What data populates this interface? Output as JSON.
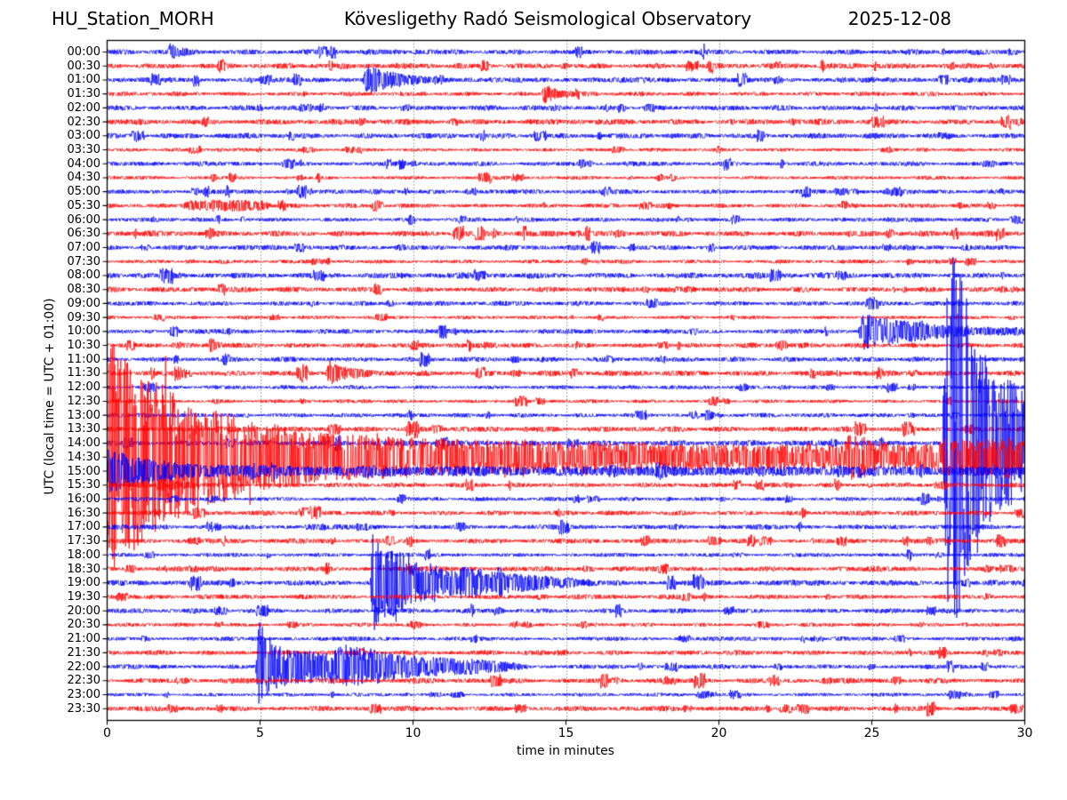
{
  "header": {
    "station": "HU_Station_MORH",
    "observatory": "Kövesligethy Radó Seismological Observatory",
    "date": "2025-12-08"
  },
  "chart_data": {
    "type": "line",
    "subtype": "helicorder-seismogram",
    "title_left": "HU_Station_MORH",
    "title_center": "Kövesligethy Radó Seismological Observatory",
    "title_right": "2025-12-08",
    "xlabel": "time in minutes",
    "ylabel": "UTC (local time = UTC + 01:00)",
    "xlim": [
      0,
      30
    ],
    "x_ticks": [
      0,
      5,
      10,
      15,
      20,
      25,
      30
    ],
    "grid": "vertical dotted lines every 5 minutes",
    "legend": "none",
    "n_rows": 48,
    "minutes_per_row": 30,
    "row_labels": [
      "00:00",
      "00:30",
      "01:00",
      "01:30",
      "02:00",
      "02:30",
      "03:00",
      "03:30",
      "04:00",
      "04:30",
      "05:00",
      "05:30",
      "06:00",
      "06:30",
      "07:00",
      "07:30",
      "08:00",
      "08:30",
      "09:00",
      "09:30",
      "10:00",
      "10:30",
      "11:00",
      "11:30",
      "12:00",
      "12:30",
      "13:00",
      "13:30",
      "14:00",
      "14:30",
      "15:00",
      "15:30",
      "16:00",
      "16:30",
      "17:00",
      "17:30",
      "18:00",
      "18:30",
      "19:00",
      "19:30",
      "20:00",
      "20:30",
      "21:00",
      "21:30",
      "22:00",
      "22:30",
      "23:00",
      "23:30"
    ],
    "trace_color_even_rows": "#0000ff",
    "trace_color_odd_rows": "#ff0000",
    "frame_color": "#000000",
    "background_noise_amplitude_rows": 0.1,
    "events": [
      {
        "row": 0,
        "row_label": "00:00",
        "type": "burst",
        "t0": 1.95,
        "attack": 0.12,
        "peak": 0.33,
        "tau": 0.3,
        "description": "small burst ~00:02 UTC"
      },
      {
        "row": 2,
        "row_label": "01:00",
        "type": "burst",
        "t0": 8.35,
        "attack": 0.15,
        "peak": 0.62,
        "tau": 0.9,
        "spikes": [
          {
            "t0": 8.35,
            "t1": 9.8,
            "prob": 0.01,
            "max": 1.05
          }
        ],
        "description": "small event ~01:08 UTC with short coda"
      },
      {
        "row": 3,
        "row_label": "01:30",
        "type": "burst",
        "t0": 14.2,
        "attack": 0.1,
        "peak": 0.45,
        "tau": 0.45,
        "description": "small burst ~01:44 UTC"
      },
      {
        "row": 11,
        "row_label": "05:30",
        "type": "tremor",
        "t0": 2.4,
        "t1": 5.4,
        "amp": 0.2,
        "description": "low-amplitude tremor band ~05:32-05:35 UTC"
      },
      {
        "row": 20,
        "row_label": "10:00",
        "type": "burst",
        "t0": 24.55,
        "attack": 0.15,
        "peak": 0.8,
        "tau": 2.2,
        "spikes": [
          {
            "t0": 24.55,
            "t1": 25.6,
            "prob": 0.012,
            "max": 1.35
          }
        ],
        "description": "moderate event ~10:24 UTC, coda to end of row"
      },
      {
        "row": 21,
        "row_label": "10:30",
        "type": "burst",
        "t0": 3.3,
        "attack": 0.08,
        "peak": 0.3,
        "tau": 0.25,
        "description": "small burst ~10:33 UTC"
      },
      {
        "row": 23,
        "row_label": "11:30",
        "type": "burst",
        "t0": 7.15,
        "attack": 0.12,
        "peak": 0.52,
        "tau": 0.55,
        "spikes": [
          {
            "t0": 7.15,
            "t1": 8.0,
            "prob": 0.01,
            "max": 0.85
          }
        ],
        "description": "small event ~11:37 UTC"
      },
      {
        "row": 28,
        "row_label": "14:00",
        "type": "segments",
        "pts": [
          [
            27.3,
            0
          ],
          [
            27.42,
            7
          ],
          [
            27.7,
            9.5
          ],
          [
            28.1,
            7
          ],
          [
            28.6,
            4.5
          ],
          [
            29.0,
            3.2
          ],
          [
            30,
            2.6
          ]
        ],
        "spikes": [
          {
            "t0": 27.35,
            "t1": 28.35,
            "prob": 0.04,
            "max": 23
          },
          {
            "t0": 28.35,
            "t1": 30,
            "prob": 0.015,
            "max": 11
          }
        ],
        "description": "main shock onset ~14:27 UTC, trace clipped across many rows"
      },
      {
        "row": 29,
        "row_label": "14:30",
        "type": "segments",
        "pts": [
          [
            0,
            5.5
          ],
          [
            1,
            4.2
          ],
          [
            2,
            3.2
          ],
          [
            3.5,
            2.2
          ],
          [
            5,
            1.6
          ],
          [
            7,
            1.1
          ],
          [
            10,
            0.85
          ],
          [
            15,
            0.65
          ],
          [
            20,
            0.55
          ],
          [
            24,
            0.5
          ],
          [
            24.3,
            1.05
          ],
          [
            24.5,
            0.9
          ],
          [
            25.5,
            0.6
          ],
          [
            27,
            0.55
          ],
          [
            27.5,
            0.85
          ],
          [
            30,
            0.7
          ]
        ],
        "spikes": [
          {
            "t0": 0,
            "t1": 1.5,
            "prob": 0.03,
            "max": 9.5
          },
          {
            "t0": 1.5,
            "t1": 3,
            "prob": 0.025,
            "max": 8
          },
          {
            "t0": 3,
            "t1": 6,
            "prob": 0.02,
            "max": 5
          },
          {
            "t0": 6,
            "t1": 9,
            "prob": 0.012,
            "max": 2.5
          }
        ],
        "description": "continuation of main shock, slowly decaying coda, aftershock ~14:54 UTC"
      },
      {
        "row": 30,
        "row_label": "15:00",
        "type": "segments",
        "pts": [
          [
            0,
            1.0
          ],
          [
            1.5,
            0.45
          ],
          [
            3,
            0.25
          ],
          [
            6,
            0.16
          ],
          [
            30,
            0.13
          ]
        ],
        "description": "late coda of main shock"
      },
      {
        "row": 38,
        "row_label": "19:00",
        "type": "segments",
        "pts": [
          [
            8.6,
            0
          ],
          [
            8.68,
            2.3
          ],
          [
            9.0,
            1.6
          ],
          [
            9.5,
            1.8
          ],
          [
            9.9,
            0.9
          ],
          [
            11,
            0.55
          ],
          [
            12.5,
            0.4
          ],
          [
            14,
            0.28
          ],
          [
            15.5,
            0.12
          ],
          [
            16,
            0
          ]
        ],
        "spikes": [
          {
            "t0": 8.6,
            "t1": 9.9,
            "prob": 0.05,
            "max": 4.3
          },
          {
            "t0": 9.9,
            "t1": 10.6,
            "prob": 0.02,
            "max": 1.5
          }
        ],
        "description": "moderate local event ~19:08 UTC"
      },
      {
        "row": 44,
        "row_label": "22:00",
        "type": "segments",
        "pts": [
          [
            4.85,
            0
          ],
          [
            4.95,
            2.2
          ],
          [
            5.3,
            1.1
          ],
          [
            6,
            0.8
          ],
          [
            7,
            0.6
          ],
          [
            7.9,
            1.0
          ],
          [
            8.5,
            0.8
          ],
          [
            9.5,
            0.5
          ],
          [
            11,
            0.35
          ],
          [
            13,
            0.18
          ],
          [
            14,
            0
          ]
        ],
        "spikes": [
          {
            "t0": 4.85,
            "t1": 5.6,
            "prob": 0.05,
            "max": 3.3
          },
          {
            "t0": 7.8,
            "t1": 8.7,
            "prob": 0.025,
            "max": 1.9
          }
        ],
        "description": "moderate local event ~22:05 UTC with secondary packet"
      }
    ]
  }
}
